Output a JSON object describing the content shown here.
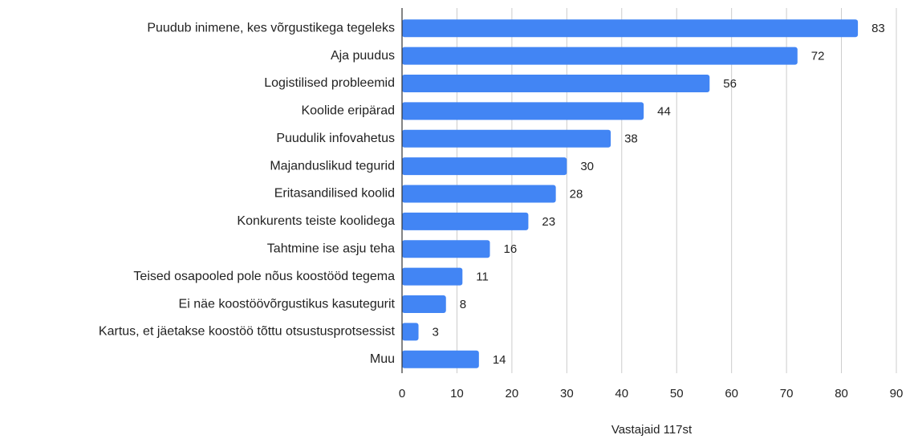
{
  "chart_data": {
    "type": "bar",
    "orientation": "horizontal",
    "xlabel": "Vastajaid 117st",
    "categories": [
      "Puudub inimene, kes võrgustikega tegeleks",
      "Aja puudus",
      "Logistilised probleemid",
      "Koolide eripärad",
      "Puudulik infovahetus",
      "Majanduslikud tegurid",
      "Eritasandilised koolid",
      "Konkurents teiste koolidega",
      "Tahtmine ise asju teha",
      "Teised osapooled pole nõus koostööd tegema",
      "Ei näe koostöövõrgustikus kasutegurit",
      "Kartus, et jäetakse koostöö tõttu otsustusprotsessist",
      "Muu"
    ],
    "values": [
      83,
      72,
      56,
      44,
      38,
      30,
      28,
      23,
      16,
      11,
      8,
      3,
      14
    ],
    "color": "#4285f4",
    "xlim": [
      0,
      90
    ],
    "xticks": [
      0,
      10,
      20,
      30,
      40,
      50,
      60,
      70,
      80,
      90
    ],
    "grid": true
  }
}
